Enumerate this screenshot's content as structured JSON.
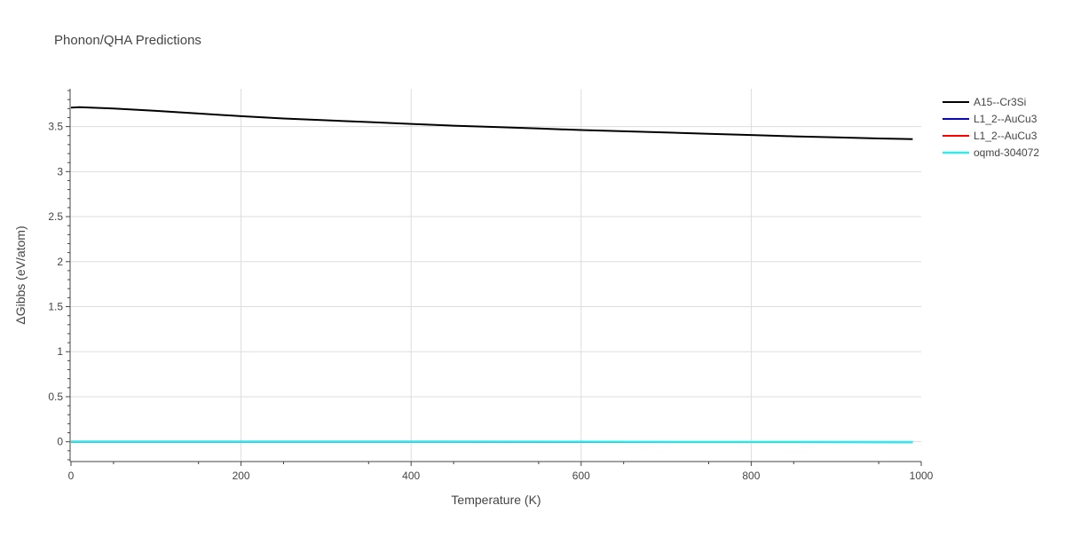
{
  "chart_data": {
    "type": "line",
    "title": "Phonon/QHA Predictions",
    "xlabel": "Temperature (K)",
    "ylabel": "ΔGibbs (eV/atom)",
    "xlim": [
      0,
      1000
    ],
    "ylim": [
      -0.22,
      3.92
    ],
    "x_ticks": [
      0,
      200,
      400,
      600,
      800,
      1000
    ],
    "x_tick_labels": [
      "0",
      "200",
      "400",
      "600",
      "800",
      "1000"
    ],
    "y_ticks": [
      0,
      0.5,
      1,
      1.5,
      2,
      2.5,
      3,
      3.5
    ],
    "y_tick_labels": [
      "0",
      "0.5",
      "1",
      "1.5",
      "2",
      "2.5",
      "3",
      "3.5"
    ],
    "grid": true,
    "legend_position": "top-right",
    "series": [
      {
        "name": "A15--Cr3Si",
        "color": "#000000",
        "x": [
          0,
          10,
          50,
          100,
          150,
          200,
          250,
          300,
          350,
          400,
          450,
          500,
          550,
          600,
          650,
          700,
          750,
          800,
          850,
          900,
          950,
          990
        ],
        "y": [
          3.71,
          3.715,
          3.7,
          3.675,
          3.645,
          3.615,
          3.59,
          3.57,
          3.55,
          3.53,
          3.51,
          3.495,
          3.478,
          3.462,
          3.448,
          3.434,
          3.42,
          3.406,
          3.392,
          3.38,
          3.368,
          3.36
        ]
      },
      {
        "name": "L1_2--AuCu3",
        "color": "#0000ff",
        "x": [
          0,
          200,
          400,
          600,
          800,
          990
        ],
        "y": [
          0.0,
          0.0,
          0.0,
          -0.002,
          -0.003,
          -0.004
        ]
      },
      {
        "name": "L1_2--AuCu3",
        "color": "#ff0000",
        "x": [
          0,
          200,
          400,
          600,
          800,
          990
        ],
        "y": [
          0.0,
          0.0,
          0.0,
          -0.002,
          -0.003,
          -0.004
        ]
      },
      {
        "name": "oqmd-304072",
        "color": "#00ffff",
        "x": [
          0,
          200,
          400,
          600,
          800,
          990
        ],
        "y": [
          0.0,
          0.0,
          0.0,
          -0.001,
          -0.002,
          -0.003
        ]
      }
    ]
  },
  "colors": {
    "grid": "#dddddd",
    "axis": "#444444",
    "text": "#444444"
  }
}
